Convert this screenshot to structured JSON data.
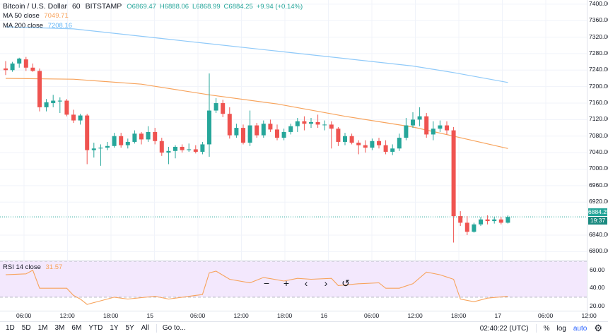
{
  "legend": {
    "symbol": "Bitcoin / U.S. Dollar",
    "interval": "60",
    "exchange": "BITSTAMP",
    "open": "O6869.47",
    "high": "H6888.06",
    "low": "L6868.99",
    "close": "C6884.25",
    "change": "+9.94 (+0.14%)",
    "ma50_label": "MA 50 close",
    "ma50_value": "7049.71",
    "ma200_label": "MA 200 close",
    "ma200_value": "7208.16",
    "rsi_label": "RSI 14 close",
    "rsi_value": "31.57"
  },
  "price_axis": [
    "7400.00",
    "7360.00",
    "7320.00",
    "7280.00",
    "7240.00",
    "7200.00",
    "7160.00",
    "7120.00",
    "7080.00",
    "7040.00",
    "7000.00",
    "6960.00",
    "6920.00",
    "6840.00",
    "6800.00"
  ],
  "last_price": "6884.25",
  "countdown": "19:37",
  "rsi_axis": [
    "60.00",
    "40.00",
    "20.00"
  ],
  "time_axis": [
    "06:00",
    "12:00",
    "18:00",
    "15",
    "06:00",
    "12:00",
    "18:00",
    "16",
    "06:00",
    "12:00",
    "18:00",
    "17",
    "06:00",
    "12:00"
  ],
  "nav": {
    "zoom_out": "−",
    "zoom_in": "+",
    "scroll_left": "‹",
    "scroll_right": "›",
    "reset": "↺"
  },
  "range_buttons": [
    "1D",
    "5D",
    "1M",
    "3M",
    "6M",
    "YTD",
    "1Y",
    "5Y",
    "All"
  ],
  "goto": "Go to...",
  "clock": "02:40:22 (UTC)",
  "percent": "%",
  "log": "log",
  "auto": "auto",
  "colors": {
    "up": "#26a69a",
    "down": "#ef5350",
    "ma50": "#f7a35c",
    "ma200": "#90caf9",
    "rsi": "#f7a35c",
    "rsi_band": "#f3e8fd"
  },
  "chart_data": {
    "type": "candlestick",
    "y_range": [
      6780,
      7410
    ],
    "candles": [
      [
        7244,
        7262,
        7228,
        7240
      ],
      [
        7240,
        7260,
        7236,
        7256
      ],
      [
        7256,
        7270,
        7246,
        7268
      ],
      [
        7266,
        7272,
        7238,
        7246
      ],
      [
        7246,
        7256,
        7236,
        7238
      ],
      [
        7238,
        7244,
        7140,
        7150
      ],
      [
        7150,
        7170,
        7140,
        7162
      ],
      [
        7160,
        7180,
        7150,
        7166
      ],
      [
        7164,
        7174,
        7136,
        7166
      ],
      [
        7166,
        7170,
        7128,
        7132
      ],
      [
        7132,
        7144,
        7112,
        7118
      ],
      [
        7118,
        7134,
        7108,
        7130
      ],
      [
        7130,
        7134,
        7012,
        7046
      ],
      [
        7046,
        7064,
        7028,
        7050
      ],
      [
        7050,
        7060,
        7008,
        7052
      ],
      [
        7052,
        7066,
        7046,
        7056
      ],
      [
        7056,
        7088,
        7052,
        7080
      ],
      [
        7080,
        7088,
        7052,
        7058
      ],
      [
        7058,
        7074,
        7050,
        7066
      ],
      [
        7066,
        7094,
        7062,
        7086
      ],
      [
        7086,
        7090,
        7060,
        7072
      ],
      [
        7072,
        7104,
        7066,
        7090
      ],
      [
        7090,
        7100,
        7060,
        7068
      ],
      [
        7068,
        7076,
        7032,
        7040
      ],
      [
        7040,
        7054,
        7012,
        7044
      ],
      [
        7044,
        7058,
        7026,
        7054
      ],
      [
        7054,
        7060,
        7040,
        7046
      ],
      [
        7046,
        7062,
        7042,
        7048
      ],
      [
        7048,
        7058,
        7038,
        7042
      ],
      [
        7042,
        7066,
        7036,
        7060
      ],
      [
        7060,
        7232,
        7030,
        7142
      ],
      [
        7142,
        7172,
        7136,
        7160
      ],
      [
        7160,
        7168,
        7126,
        7134
      ],
      [
        7134,
        7150,
        7074,
        7082
      ],
      [
        7082,
        7110,
        7076,
        7100
      ],
      [
        7100,
        7108,
        7060,
        7064
      ],
      [
        7064,
        7142,
        7056,
        7106
      ],
      [
        7106,
        7112,
        7076,
        7082
      ],
      [
        7082,
        7118,
        7076,
        7110
      ],
      [
        7110,
        7120,
        7090,
        7096
      ],
      [
        7096,
        7108,
        7070,
        7076
      ],
      [
        7076,
        7098,
        7070,
        7090
      ],
      [
        7090,
        7110,
        7084,
        7104
      ],
      [
        7104,
        7124,
        7090,
        7116
      ],
      [
        7116,
        7128,
        7094,
        7110
      ],
      [
        7110,
        7124,
        7100,
        7114
      ],
      [
        7114,
        7132,
        7100,
        7108
      ],
      [
        7108,
        7118,
        7094,
        7108
      ],
      [
        7108,
        7116,
        7050,
        7098
      ],
      [
        7098,
        7102,
        7056,
        7066
      ],
      [
        7066,
        7088,
        7058,
        7080
      ],
      [
        7080,
        7086,
        7060,
        7064
      ],
      [
        7064,
        7070,
        7036,
        7058
      ],
      [
        7058,
        7070,
        7040,
        7052
      ],
      [
        7052,
        7074,
        7046,
        7068
      ],
      [
        7068,
        7076,
        7050,
        7058
      ],
      [
        7058,
        7070,
        7036,
        7042
      ],
      [
        7042,
        7060,
        7034,
        7050
      ],
      [
        7050,
        7086,
        7044,
        7076
      ],
      [
        7076,
        7124,
        7070,
        7106
      ],
      [
        7106,
        7138,
        7100,
        7120
      ],
      [
        7120,
        7150,
        7104,
        7128
      ],
      [
        7128,
        7136,
        7076,
        7084
      ],
      [
        7084,
        7116,
        7070,
        7098
      ],
      [
        7098,
        7118,
        7090,
        7106
      ],
      [
        7106,
        7116,
        7084,
        7094
      ],
      [
        7094,
        7102,
        6822,
        6886
      ],
      [
        6886,
        6898,
        6862,
        6870
      ],
      [
        6870,
        6886,
        6840,
        6848
      ],
      [
        6848,
        6870,
        6846,
        6866
      ],
      [
        6866,
        6884,
        6862,
        6878
      ],
      [
        6878,
        6888,
        6866,
        6874
      ],
      [
        6874,
        6884,
        6868,
        6878
      ],
      [
        6878,
        6884,
        6866,
        6870
      ],
      [
        6870,
        6888,
        6868,
        6884
      ]
    ],
    "ma50": [
      [
        0,
        7220
      ],
      [
        10,
        7218
      ],
      [
        20,
        7206
      ],
      [
        30,
        7180
      ],
      [
        40,
        7158
      ],
      [
        50,
        7128
      ],
      [
        60,
        7102
      ],
      [
        66,
        7080
      ],
      [
        74,
        7050
      ]
    ],
    "ma200": [
      [
        0,
        7345
      ],
      [
        10,
        7340
      ],
      [
        20,
        7322
      ],
      [
        30,
        7304
      ],
      [
        40,
        7286
      ],
      [
        50,
        7268
      ],
      [
        60,
        7250
      ],
      [
        66,
        7234
      ],
      [
        74,
        7210
      ]
    ],
    "rsi": [
      [
        0,
        55
      ],
      [
        3,
        56
      ],
      [
        4,
        60
      ],
      [
        5,
        40
      ],
      [
        9,
        40
      ],
      [
        10,
        32
      ],
      [
        11,
        28
      ],
      [
        12,
        22
      ],
      [
        14,
        26
      ],
      [
        16,
        30
      ],
      [
        18,
        28
      ],
      [
        22,
        31
      ],
      [
        24,
        28
      ],
      [
        29,
        33
      ],
      [
        30,
        57
      ],
      [
        31,
        59
      ],
      [
        33,
        50
      ],
      [
        36,
        46
      ],
      [
        38,
        52
      ],
      [
        41,
        48
      ],
      [
        43,
        51
      ],
      [
        45,
        50
      ],
      [
        48,
        51
      ],
      [
        49,
        43
      ],
      [
        52,
        45
      ],
      [
        55,
        46
      ],
      [
        56,
        40
      ],
      [
        58,
        40
      ],
      [
        60,
        45
      ],
      [
        62,
        58
      ],
      [
        64,
        55
      ],
      [
        66,
        50
      ],
      [
        67,
        28
      ],
      [
        69,
        25
      ],
      [
        71,
        29
      ],
      [
        74,
        31
      ]
    ],
    "rsi_range": [
      15,
      70
    ]
  }
}
